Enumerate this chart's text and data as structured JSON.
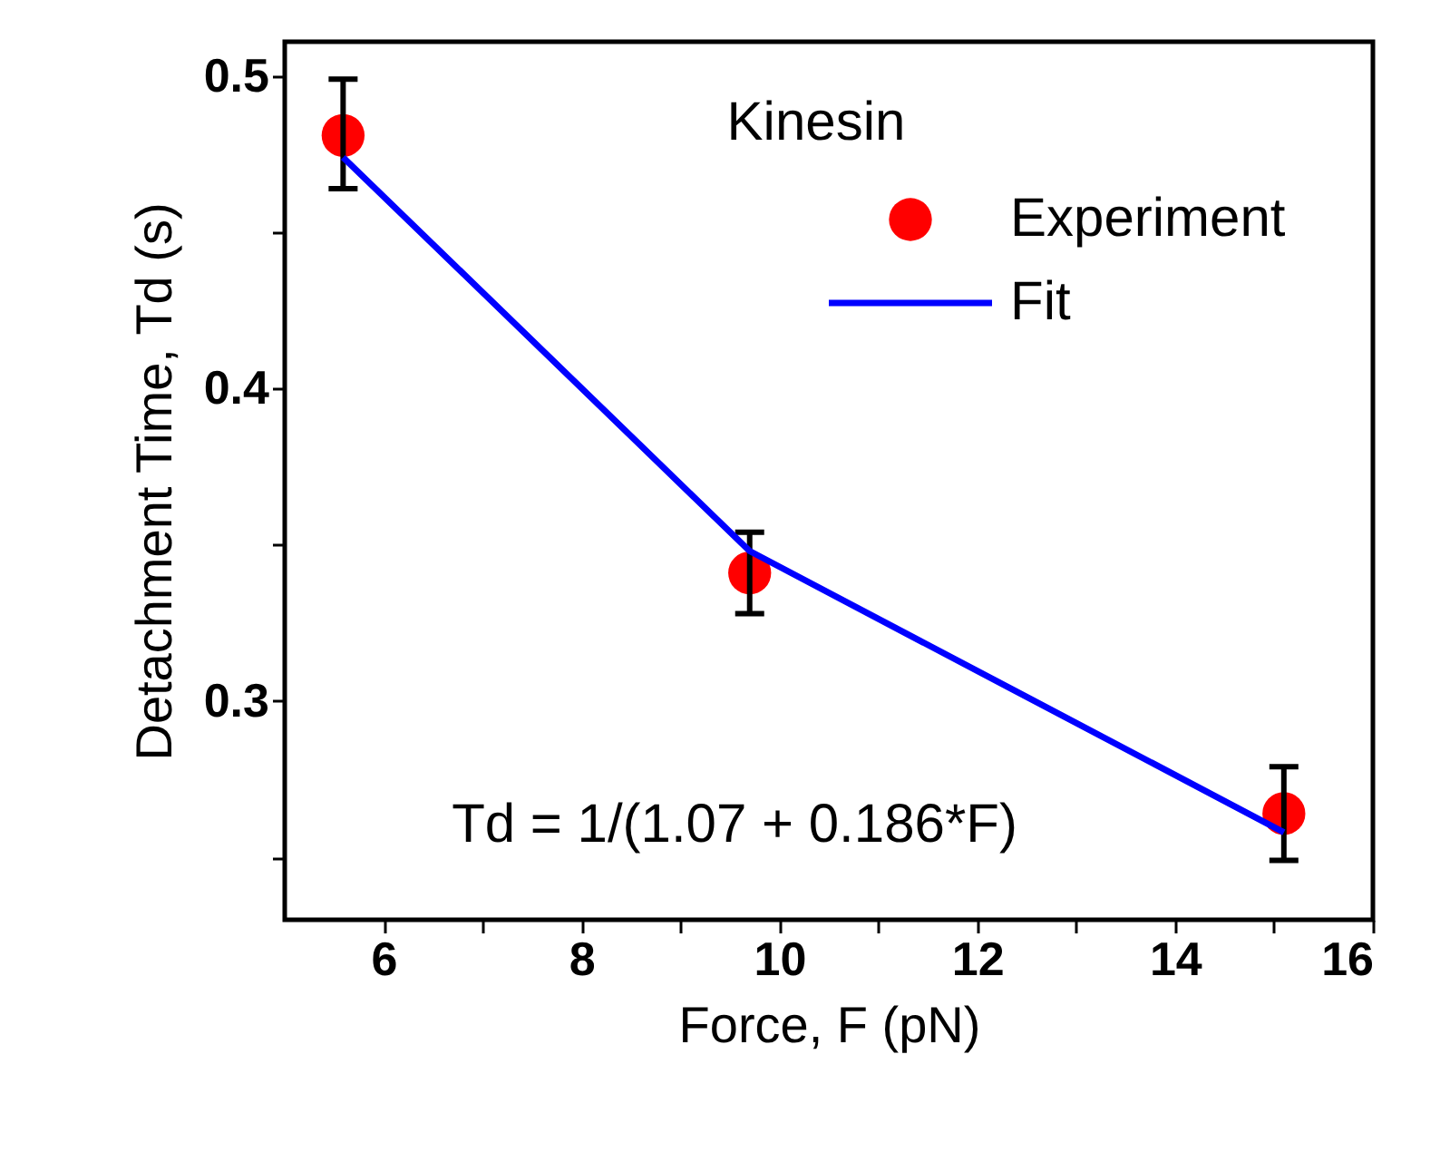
{
  "chart_data": {
    "type": "scatter",
    "xlabel": "Force, F (pN)",
    "ylabel": "Detachment Time, Td (s)",
    "annotations": [
      "Kinesin",
      "Td = 1/(1.07 + 0.186*F)"
    ],
    "xlim": [
      5,
      16
    ],
    "ylim": [
      0.23,
      0.511
    ],
    "xticks": [
      6,
      8,
      10,
      12,
      14,
      16,
      {
        "value": 7,
        "label": null
      },
      {
        "value": 9,
        "label": null
      },
      {
        "value": 11,
        "label": null
      },
      {
        "value": 13,
        "label": null
      },
      {
        "value": 15,
        "label": null
      }
    ],
    "yticks": [
      0.3,
      0.4,
      0.5,
      {
        "value": 0.25,
        "label": null
      },
      {
        "value": 0.35,
        "label": null
      },
      {
        "value": 0.45,
        "label": null
      }
    ],
    "grid": false,
    "legend": "top right",
    "series": [
      {
        "name": "Experiment",
        "color": "#ff0000",
        "marker": "circle",
        "x": [
          5.59,
          9.7,
          15.1
        ],
        "values": [
          0.481,
          0.341,
          0.264
        ],
        "errors": [
          [
            0.464,
            0.499
          ],
          [
            0.328,
            0.354
          ],
          [
            0.249,
            0.279
          ]
        ]
      },
      {
        "name": "Fit",
        "type": "line",
        "color": "#0000ff",
        "line_style": "solid",
        "x": [
          5.59,
          9.7,
          15.1
        ],
        "values": [
          0.474,
          0.348,
          0.258
        ]
      }
    ]
  }
}
